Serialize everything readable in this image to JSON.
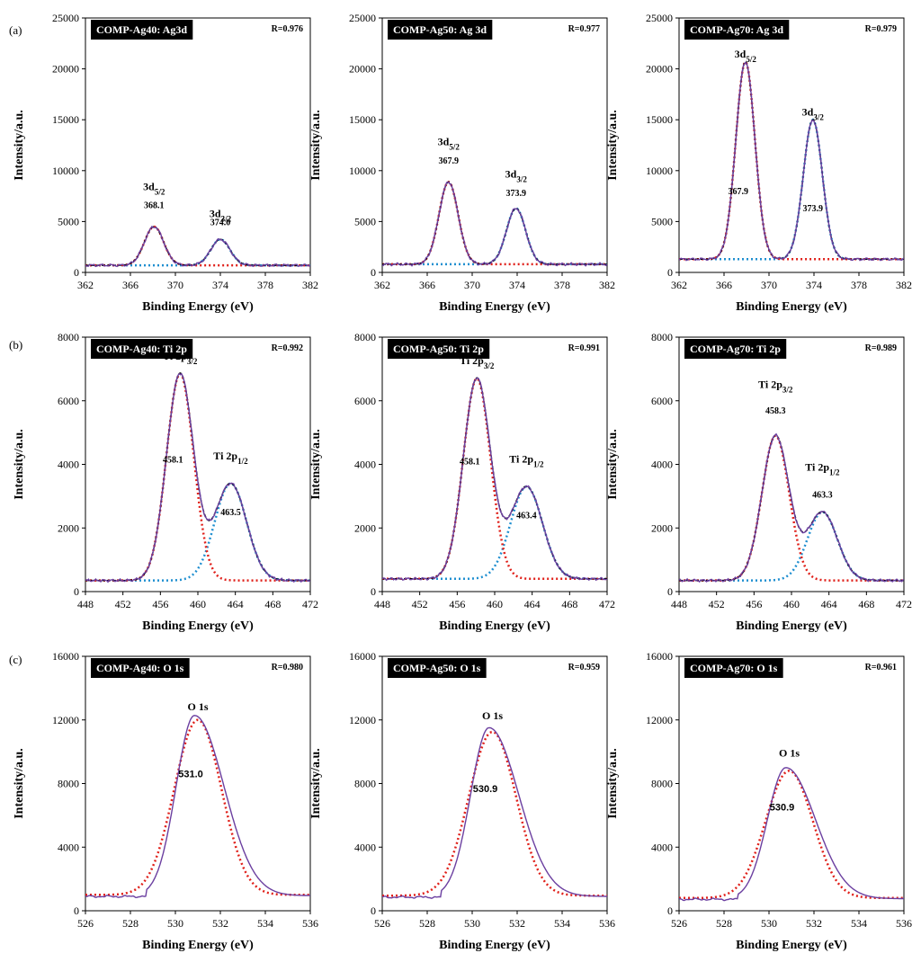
{
  "figure": {
    "row_labels": [
      "(a)",
      "(b)",
      "(c)"
    ]
  },
  "colors": {
    "envelope": "#6b3fa0",
    "fit_total": "#000000",
    "peak1": "#e0201a",
    "peak2": "#1f8fd0",
    "title_bg": "#000000"
  },
  "chart_data": [
    {
      "type": "line",
      "row": "a",
      "title": "COMP-Ag40: Ag3d",
      "r_value": "R=0.976",
      "xlabel": "Binding Energy (eV)",
      "ylabel": "Intensity/a.u.",
      "xlim": [
        362,
        382
      ],
      "ylim": [
        0,
        25000
      ],
      "xticks": [
        "362",
        "366",
        "370",
        "374",
        "378",
        "382"
      ],
      "yticks": [
        "0",
        "5000",
        "10000",
        "15000",
        "20000",
        "25000"
      ],
      "background": 700,
      "peaks": [
        {
          "label": "3d",
          "sub": "5/2",
          "position": 368.1,
          "position_label": "368.1",
          "height": 3800,
          "sigma": 0.85
        },
        {
          "label": "3d",
          "sub": "3/2",
          "position": 374.0,
          "position_label": "374.0",
          "height": 2550,
          "sigma": 0.85
        }
      ],
      "peak_label_offset_y": [
        3600,
        2200
      ],
      "value_label_offset_y": [
        1800,
        1400
      ],
      "label_order": "stacked"
    },
    {
      "type": "line",
      "row": "a",
      "title": "COMP-Ag50: Ag 3d",
      "r_value": "R=0.977",
      "xlabel": "Binding Energy (eV)",
      "ylabel": "Intensity/a.u.",
      "xlim": [
        362,
        382
      ],
      "ylim": [
        0,
        25000
      ],
      "xticks": [
        "362",
        "366",
        "370",
        "374",
        "378",
        "382"
      ],
      "yticks": [
        "0",
        "5000",
        "10000",
        "15000",
        "20000",
        "25000"
      ],
      "background": 800,
      "peaks": [
        {
          "label": "3d",
          "sub": "5/2",
          "position": 367.9,
          "position_label": "367.9",
          "height": 8100,
          "sigma": 0.85
        },
        {
          "label": "3d",
          "sub": "3/2",
          "position": 373.9,
          "position_label": "373.9",
          "height": 5500,
          "sigma": 0.85
        }
      ],
      "peak_label_offset_y": [
        3600,
        3000
      ],
      "value_label_offset_y": [
        1800,
        1200
      ],
      "label_order": "stacked"
    },
    {
      "type": "line",
      "row": "a",
      "title": "COMP-Ag70: Ag 3d",
      "r_value": "R=0.979",
      "xlabel": "Binding Energy (eV)",
      "ylabel": "Intensity/a.u.",
      "xlim": [
        362,
        382
      ],
      "ylim": [
        0,
        25000
      ],
      "xticks": [
        "362",
        "366",
        "370",
        "374",
        "378",
        "382"
      ],
      "yticks": [
        "0",
        "5000",
        "10000",
        "15000",
        "20000",
        "25000"
      ],
      "background": 1300,
      "peaks": [
        {
          "label": "3d",
          "sub": "5/2",
          "position": 367.9,
          "position_label": "367.9",
          "height": 19400,
          "sigma": 0.85
        },
        {
          "label": "3d",
          "sub": "3/2",
          "position": 373.9,
          "position_label": "373.9",
          "height": 13700,
          "sigma": 0.85
        }
      ],
      "peak_label_offset_y": [
        400,
        400
      ],
      "value_label_offset_y": [
        -13000,
        -9000
      ],
      "label_order": "split"
    },
    {
      "type": "line",
      "row": "b",
      "title": "COMP-Ag40: Ti 2p",
      "r_value": "R=0.992",
      "xlabel": "Binding Energy (eV)",
      "ylabel": "Intensity/a.u.",
      "xlim": [
        448,
        472
      ],
      "ylim": [
        0,
        8000
      ],
      "xticks": [
        "448",
        "452",
        "456",
        "460",
        "464",
        "468",
        "472"
      ],
      "yticks": [
        "0",
        "2000",
        "4000",
        "6000",
        "8000"
      ],
      "background": 350,
      "peaks": [
        {
          "label": "Ti 2p",
          "sub": "3/2",
          "position": 458.1,
          "position_label": "458.1",
          "height": 6500,
          "sigma": 1.45
        },
        {
          "label": "Ti 2p",
          "sub": "1/2",
          "position": 463.5,
          "position_label": "463.5",
          "height": 3050,
          "sigma": 1.7
        }
      ],
      "peak_label_offset_y": [
        450,
        750
      ],
      "value_label_offset_y": [
        -2800,
        -1000
      ],
      "label_order": "split"
    },
    {
      "type": "line",
      "row": "b",
      "title": "COMP-Ag50: Ti 2p",
      "r_value": "R=0.991",
      "xlabel": "Binding Energy (eV)",
      "ylabel": "Intensity/a.u.",
      "xlim": [
        448,
        472
      ],
      "ylim": [
        0,
        8000
      ],
      "xticks": [
        "448",
        "452",
        "456",
        "460",
        "464",
        "468",
        "472"
      ],
      "yticks": [
        "0",
        "2000",
        "4000",
        "6000",
        "8000"
      ],
      "background": 400,
      "peaks": [
        {
          "label": "Ti 2p",
          "sub": "3/2",
          "position": 458.1,
          "position_label": "458.1",
          "height": 6300,
          "sigma": 1.45
        },
        {
          "label": "Ti 2p",
          "sub": "1/2",
          "position": 463.4,
          "position_label": "463.4",
          "height": 2900,
          "sigma": 1.7
        }
      ],
      "peak_label_offset_y": [
        450,
        750
      ],
      "value_label_offset_y": [
        -2700,
        -1000
      ],
      "label_order": "split"
    },
    {
      "type": "line",
      "row": "b",
      "title": "COMP-Ag70: Ti 2p",
      "r_value": "R=0.989",
      "xlabel": "Binding Energy (eV)",
      "ylabel": "Intensity/a.u.",
      "xlim": [
        448,
        472
      ],
      "ylim": [
        0,
        8000
      ],
      "xticks": [
        "448",
        "452",
        "456",
        "460",
        "464",
        "468",
        "472"
      ],
      "yticks": [
        "0",
        "2000",
        "4000",
        "6000",
        "8000"
      ],
      "background": 350,
      "peaks": [
        {
          "label": "Ti 2p",
          "sub": "3/2",
          "position": 458.3,
          "position_label": "458.3",
          "height": 4550,
          "sigma": 1.45
        },
        {
          "label": "Ti 2p",
          "sub": "1/2",
          "position": 463.3,
          "position_label": "463.3",
          "height": 2150,
          "sigma": 1.6
        }
      ],
      "peak_label_offset_y": [
        1500,
        1300
      ],
      "value_label_offset_y": [
        700,
        450
      ],
      "label_order": "stacked"
    },
    {
      "type": "line",
      "row": "c",
      "title": "COMP-Ag40: O 1s",
      "r_value": "R=0.980",
      "xlabel": "Binding Energy (eV)",
      "ylabel": "Intensity/a.u.",
      "xlim": [
        526,
        536
      ],
      "ylim": [
        0,
        16000
      ],
      "xticks": [
        "526",
        "528",
        "530",
        "532",
        "534",
        "536"
      ],
      "yticks": [
        "0",
        "4000",
        "8000",
        "12000",
        "16000"
      ],
      "background": 1000,
      "peaks": [
        {
          "label": "O 1s",
          "sub": "",
          "position": 531.0,
          "position_label": "531.0",
          "height": 11000,
          "sigma": 1.05
        }
      ],
      "peak_label_offset_y": [
        600
      ],
      "value_label_offset_y": [
        -3600
      ],
      "label_order": "split"
    },
    {
      "type": "line",
      "row": "c",
      "title": "COMP-Ag50: O 1s",
      "r_value": "R=0.959",
      "xlabel": "Binding Energy (eV)",
      "ylabel": "Intensity/a.u.",
      "xlim": [
        526,
        536
      ],
      "ylim": [
        0,
        16000
      ],
      "xticks": [
        "526",
        "528",
        "530",
        "532",
        "534",
        "536"
      ],
      "yticks": [
        "0",
        "4000",
        "8000",
        "12000",
        "16000"
      ],
      "background": 950,
      "peaks": [
        {
          "label": "O 1s",
          "sub": "",
          "position": 530.9,
          "position_label": "530.9",
          "height": 10300,
          "sigma": 1.05
        }
      ],
      "peak_label_offset_y": [
        800
      ],
      "value_label_offset_y": [
        -3800
      ],
      "label_order": "split"
    },
    {
      "type": "line",
      "row": "c",
      "title": "COMP-Ag70: O 1s",
      "r_value": "R=0.961",
      "xlabel": "Binding Energy (eV)",
      "ylabel": "Intensity/a.u.",
      "xlim": [
        526,
        536
      ],
      "ylim": [
        0,
        16000
      ],
      "xticks": [
        "526",
        "528",
        "530",
        "532",
        "534",
        "536"
      ],
      "yticks": [
        "0",
        "4000",
        "8000",
        "12000",
        "16000"
      ],
      "background": 800,
      "peaks": [
        {
          "label": "O 1s",
          "sub": "",
          "position": 530.9,
          "position_label": "530.9",
          "height": 8000,
          "sigma": 1.05
        }
      ],
      "peak_label_offset_y": [
        900
      ],
      "value_label_offset_y": [
        -2500
      ],
      "label_order": "split"
    }
  ]
}
